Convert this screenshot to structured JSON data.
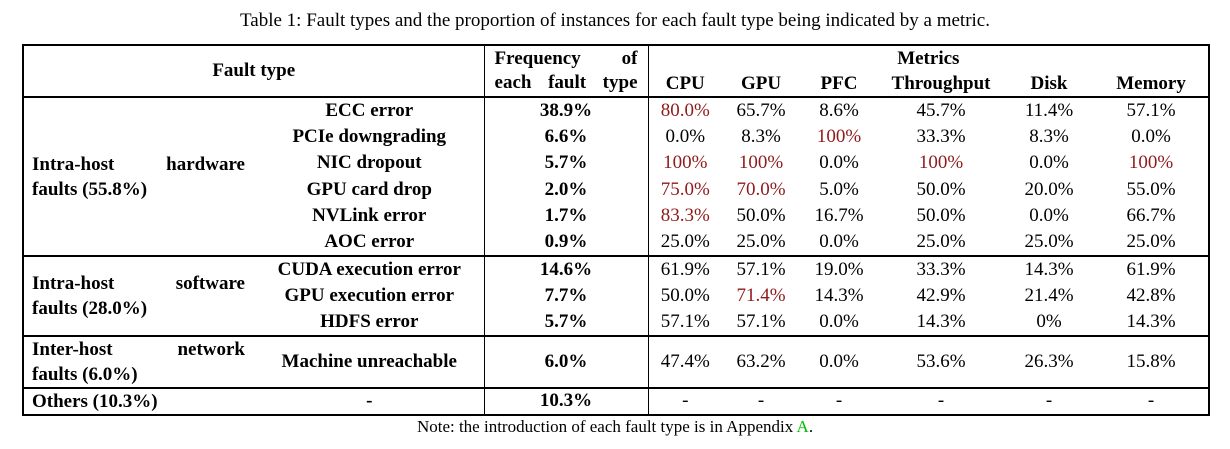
{
  "caption": "Table 1: Fault types and the proportion of instances for each fault type being indicated by a metric.",
  "note": {
    "prefix": "Note: the introduction of each fault type is in Appendix ",
    "link_text": "A",
    "suffix": "."
  },
  "colors": {
    "highlight_red": "#8e1a1a",
    "appendix_green": "#00bd00"
  },
  "table": {
    "header": {
      "fault_type": "Fault type",
      "frequency_lines": [
        "Frequency of",
        "each fault type"
      ],
      "metrics_label": "Metrics",
      "metric_columns": [
        "CPU",
        "GPU",
        "PFC",
        "Throughput",
        "Disk",
        "Memory"
      ]
    },
    "groups": [
      {
        "category_lines": [
          "Intra-host hardware",
          "faults (55.8%)"
        ],
        "rows": [
          {
            "fault": "ECC error",
            "frequency": "38.9%",
            "values": [
              "80.0%",
              "65.7%",
              "8.6%",
              "45.7%",
              "11.4%",
              "57.1%"
            ],
            "red": [
              1,
              0,
              0,
              0,
              0,
              0
            ]
          },
          {
            "fault": "PCIe downgrading",
            "frequency": "6.6%",
            "values": [
              "0.0%",
              "8.3%",
              "100%",
              "33.3%",
              "8.3%",
              "0.0%"
            ],
            "red": [
              0,
              0,
              1,
              0,
              0,
              0
            ]
          },
          {
            "fault": "NIC dropout",
            "frequency": "5.7%",
            "values": [
              "100%",
              "100%",
              "0.0%",
              "100%",
              "0.0%",
              "100%"
            ],
            "red": [
              1,
              1,
              0,
              1,
              0,
              1
            ]
          },
          {
            "fault": "GPU card drop",
            "frequency": "2.0%",
            "values": [
              "75.0%",
              "70.0%",
              "5.0%",
              "50.0%",
              "20.0%",
              "55.0%"
            ],
            "red": [
              1,
              1,
              0,
              0,
              0,
              0
            ]
          },
          {
            "fault": "NVLink error",
            "frequency": "1.7%",
            "values": [
              "83.3%",
              "50.0%",
              "16.7%",
              "50.0%",
              "0.0%",
              "66.7%"
            ],
            "red": [
              1,
              0,
              0,
              0,
              0,
              0
            ]
          },
          {
            "fault": "AOC error",
            "frequency": "0.9%",
            "values": [
              "25.0%",
              "25.0%",
              "0.0%",
              "25.0%",
              "25.0%",
              "25.0%"
            ],
            "red": [
              0,
              0,
              0,
              0,
              0,
              0
            ]
          }
        ]
      },
      {
        "category_lines": [
          "Intra-host software",
          "faults (28.0%)"
        ],
        "rows": [
          {
            "fault": "CUDA execution error",
            "frequency": "14.6%",
            "values": [
              "61.9%",
              "57.1%",
              "19.0%",
              "33.3%",
              "14.3%",
              "61.9%"
            ],
            "red": [
              0,
              0,
              0,
              0,
              0,
              0
            ]
          },
          {
            "fault": "GPU execution error",
            "frequency": "7.7%",
            "values": [
              "50.0%",
              "71.4%",
              "14.3%",
              "42.9%",
              "21.4%",
              "42.8%"
            ],
            "red": [
              0,
              1,
              0,
              0,
              0,
              0
            ]
          },
          {
            "fault": "HDFS error",
            "frequency": "5.7%",
            "values": [
              "57.1%",
              "57.1%",
              "0.0%",
              "14.3%",
              "0%",
              "14.3%"
            ],
            "red": [
              0,
              0,
              0,
              0,
              0,
              0
            ]
          }
        ]
      },
      {
        "category_lines": [
          "Inter-host network",
          "faults (6.0%)"
        ],
        "tall": true,
        "rows": [
          {
            "fault": "Machine unreachable",
            "frequency": "6.0%",
            "values": [
              "47.4%",
              "63.2%",
              "0.0%",
              "53.6%",
              "26.3%",
              "15.8%"
            ],
            "red": [
              0,
              0,
              0,
              0,
              0,
              0
            ]
          }
        ]
      },
      {
        "category_lines": [
          "Others (10.3%)"
        ],
        "compact": true,
        "rows": [
          {
            "fault": "-",
            "frequency": "10.3%",
            "values": [
              "-",
              "-",
              "-",
              "-",
              "-",
              "-"
            ],
            "red": [
              0,
              0,
              0,
              0,
              0,
              0
            ]
          }
        ]
      }
    ]
  }
}
